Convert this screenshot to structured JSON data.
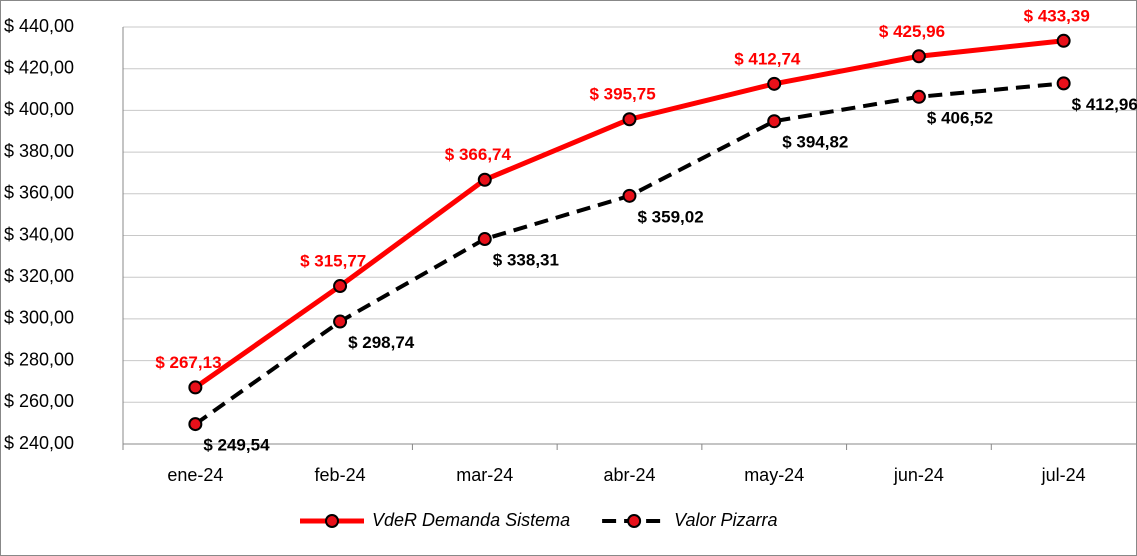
{
  "chart_data": {
    "type": "line",
    "categories": [
      "ene-24",
      "feb-24",
      "mar-24",
      "abr-24",
      "may-24",
      "jun-24",
      "jul-24"
    ],
    "series": [
      {
        "name": "VdeR Demanda Sistema",
        "color": "#ff0000",
        "dash": false,
        "values": [
          267.13,
          315.77,
          366.74,
          395.75,
          412.74,
          425.96,
          433.39
        ],
        "value_labels": [
          "$ 267,13",
          "$ 315,77",
          "$ 366,74",
          "$ 395,75",
          "$ 412,74",
          "$ 425,96",
          "$ 433,39"
        ]
      },
      {
        "name": "Valor Pizarra",
        "color": "#000000",
        "dash": true,
        "values": [
          249.54,
          298.74,
          338.31,
          359.02,
          394.82,
          406.52,
          412.96
        ],
        "value_labels": [
          "$ 249,54",
          "$ 298,74",
          "$ 338,31",
          "$ 359,02",
          "$ 394,82",
          "$ 406,52",
          "$ 412,96"
        ]
      }
    ],
    "marker_color": "#e8101a",
    "ylim": [
      240,
      440
    ],
    "yticks": [
      {
        "value": 240,
        "label": "$ 240,00"
      },
      {
        "value": 260,
        "label": "$ 260,00"
      },
      {
        "value": 280,
        "label": "$ 280,00"
      },
      {
        "value": 300,
        "label": "$ 300,00"
      },
      {
        "value": 320,
        "label": "$ 320,00"
      },
      {
        "value": 340,
        "label": "$ 340,00"
      },
      {
        "value": 360,
        "label": "$ 360,00"
      },
      {
        "value": 380,
        "label": "$ 380,00"
      },
      {
        "value": 400,
        "label": "$ 400,00"
      },
      {
        "value": 420,
        "label": "$ 420,00"
      },
      {
        "value": 440,
        "label": "$ 440,00"
      }
    ],
    "grid": true,
    "legend": "bottom"
  }
}
